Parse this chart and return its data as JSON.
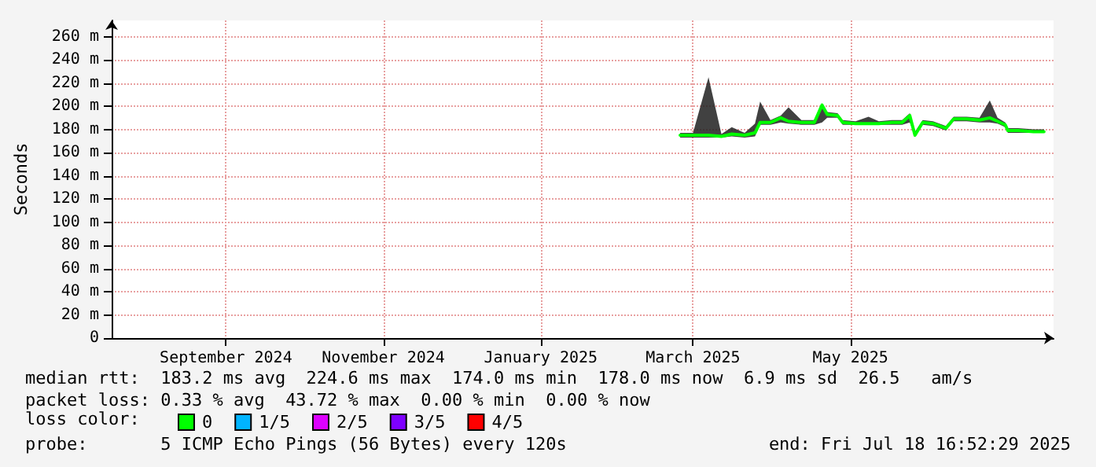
{
  "chart_data": {
    "type": "line",
    "ylabel": "Seconds",
    "x": [
      "2025-02-24",
      "2025-03-01",
      "2025-03-07",
      "2025-03-12",
      "2025-03-16",
      "2025-03-21",
      "2025-03-25",
      "2025-03-27",
      "2025-03-31",
      "2025-04-04",
      "2025-04-07",
      "2025-04-12",
      "2025-04-17",
      "2025-04-20",
      "2025-04-22",
      "2025-04-26",
      "2025-04-28",
      "2025-05-03",
      "2025-05-08",
      "2025-05-12",
      "2025-05-17",
      "2025-05-21",
      "2025-05-24",
      "2025-05-26",
      "2025-05-29",
      "2025-06-02",
      "2025-06-07",
      "2025-06-10",
      "2025-06-15",
      "2025-06-20",
      "2025-06-24",
      "2025-06-27",
      "2025-06-30",
      "2025-07-01",
      "2025-07-05",
      "2025-07-11",
      "2025-07-15"
    ],
    "series": [
      {
        "name": "0",
        "color": "#00ff00",
        "values": [
          175,
          175,
          175,
          174,
          176,
          175,
          177,
          186,
          186,
          190,
          187,
          186,
          186,
          201,
          193,
          192,
          186,
          185,
          185,
          185,
          186,
          186,
          192,
          175,
          186,
          185,
          181,
          189,
          189,
          188,
          190,
          187,
          184,
          179,
          179,
          178,
          178
        ],
        "lower": [
          173,
          173,
          173,
          173,
          174,
          173,
          174,
          184,
          184,
          186,
          185,
          184,
          184,
          186,
          190,
          190,
          184,
          184,
          184,
          184,
          184,
          184,
          186,
          174,
          184,
          183,
          179,
          187,
          187,
          186,
          186,
          185,
          182,
          177,
          177,
          177,
          177
        ],
        "upper": [
          177,
          177,
          225,
          176,
          182,
          177,
          185,
          204,
          188,
          192,
          199,
          188,
          188,
          202,
          195,
          194,
          188,
          187,
          191,
          187,
          188,
          188,
          194,
          178,
          188,
          187,
          183,
          191,
          191,
          190,
          205,
          190,
          186,
          181,
          181,
          180,
          180
        ]
      },
      {
        "name": "1/5",
        "color": "#00b4ff",
        "values": [
          null,
          null,
          null,
          null,
          null,
          null,
          null,
          null,
          null,
          null,
          null,
          null,
          null,
          null,
          null,
          null,
          null,
          null,
          null,
          null,
          null,
          null,
          null,
          null,
          null,
          null,
          null,
          null,
          null,
          null,
          null,
          null,
          null,
          null,
          null,
          null,
          null
        ]
      },
      {
        "name": "2/5",
        "color": "#dd00ff",
        "values": [
          null,
          null,
          null,
          null,
          null,
          null,
          null,
          null,
          null,
          null,
          null,
          null,
          null,
          null,
          null,
          null,
          null,
          null,
          null,
          null,
          null,
          null,
          null,
          null,
          null,
          null,
          null,
          null,
          null,
          null,
          null,
          null,
          null,
          null,
          null,
          null,
          null
        ]
      },
      {
        "name": "3/5",
        "color": "#7e00ff",
        "values": [
          null,
          null,
          null,
          null,
          null,
          null,
          null,
          null,
          null,
          null,
          null,
          null,
          null,
          null,
          null,
          null,
          null,
          null,
          null,
          null,
          null,
          null,
          null,
          null,
          null,
          null,
          null,
          null,
          null,
          null,
          null,
          null,
          null,
          null,
          null,
          null,
          null
        ]
      },
      {
        "name": "4/5",
        "color": "#ff0000",
        "values": [
          null,
          null,
          null,
          null,
          null,
          null,
          null,
          null,
          null,
          null,
          null,
          null,
          null,
          null,
          null,
          null,
          null,
          null,
          null,
          null,
          null,
          null,
          null,
          null,
          null,
          null,
          null,
          null,
          null,
          null,
          null,
          null,
          null,
          null,
          null,
          null,
          null
        ]
      }
    ],
    "xlim": [
      "2024-07-18T16:52",
      "2025-07-18T16:52"
    ],
    "xticks": [
      {
        "value": "2024-09-01",
        "label": "September 2024"
      },
      {
        "value": "2024-11-01",
        "label": "November 2024"
      },
      {
        "value": "2025-01-01",
        "label": "January 2025"
      },
      {
        "value": "2025-03-01",
        "label": "March 2025"
      },
      {
        "value": "2025-05-01",
        "label": "May 2025"
      }
    ],
    "ylim": [
      0,
      274
    ],
    "yticks": [
      {
        "value": 0,
        "label": "0"
      },
      {
        "value": 20,
        "label": "20 m"
      },
      {
        "value": 40,
        "label": "40 m"
      },
      {
        "value": 60,
        "label": "60 m"
      },
      {
        "value": 80,
        "label": "80 m"
      },
      {
        "value": 100,
        "label": "100 m"
      },
      {
        "value": 120,
        "label": "120 m"
      },
      {
        "value": 140,
        "label": "140 m"
      },
      {
        "value": 160,
        "label": "160 m"
      },
      {
        "value": 180,
        "label": "180 m"
      },
      {
        "value": 200,
        "label": "200 m"
      },
      {
        "value": 220,
        "label": "220 m"
      },
      {
        "value": 240,
        "label": "240 m"
      },
      {
        "value": 260,
        "label": "260 m"
      }
    ],
    "grid": true,
    "legend": "bottom left",
    "legend_title": "loss color:",
    "marker": "none",
    "line_style": "solid",
    "annotations": [
      "median rtt:  183.2 ms avg  224.6 ms max  174.0 ms min  178.0 ms now  6.9 ms sd  26.5   am/s",
      "packet loss: 0.33 % avg  43.72 % max  0.00 % min  0.00 % now",
      "probe:       5 ICMP Echo Pings (56 Bytes) every 120s",
      "end: Fri Jul 18 16:52:29 2025"
    ]
  }
}
